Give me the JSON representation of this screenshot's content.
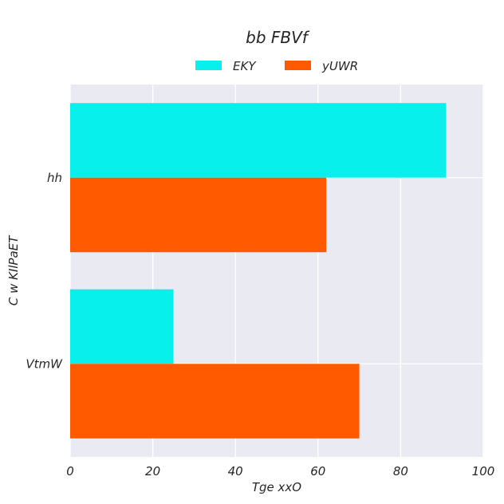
{
  "chart_data": {
    "type": "bar",
    "orientation": "horizontal",
    "title": "bb FBVf",
    "xlabel": "Tge xxO",
    "ylabel": "C w  KIlPaET",
    "categories": [
      "hh",
      "VtmW"
    ],
    "series": [
      {
        "name": "EKY",
        "values": [
          91,
          25
        ],
        "color": "#08f0ec"
      },
      {
        "name": "yUWR",
        "values": [
          62,
          70
        ],
        "color": "#ff5a00"
      }
    ],
    "xlim": [
      0,
      100
    ],
    "xticks": [
      0,
      20,
      40,
      60,
      80,
      100
    ],
    "grid": true,
    "legend_position": "top-center",
    "background_color": "#eaeaf2",
    "grid_color": "#ffffff"
  }
}
